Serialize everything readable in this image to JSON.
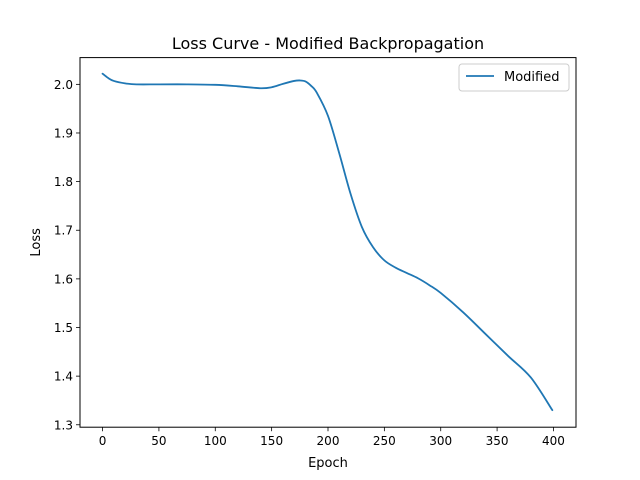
{
  "chart_data": {
    "type": "line",
    "title": "Loss Curve - Modified Backpropagation",
    "xlabel": "Epoch",
    "ylabel": "Loss",
    "xlim": [
      -20,
      420
    ],
    "ylim": [
      1.295,
      2.055
    ],
    "xticks": [
      0,
      50,
      100,
      150,
      200,
      250,
      300,
      350,
      400
    ],
    "yticks": [
      1.3,
      1.4,
      1.5,
      1.6,
      1.7,
      1.8,
      1.9,
      2.0
    ],
    "xtick_labels": [
      "0",
      "50",
      "100",
      "150",
      "200",
      "250",
      "300",
      "350",
      "400"
    ],
    "ytick_labels": [
      "1.3",
      "1.4",
      "1.5",
      "1.6",
      "1.7",
      "1.8",
      "1.9",
      "2.0"
    ],
    "grid": false,
    "legend_position": "top-right",
    "series": [
      {
        "name": "Modified",
        "color": "#1f77b4",
        "x": [
          0,
          5,
          10,
          20,
          30,
          50,
          75,
          100,
          120,
          140,
          150,
          160,
          170,
          175,
          180,
          185,
          190,
          200,
          210,
          220,
          230,
          240,
          250,
          260,
          270,
          280,
          290,
          300,
          320,
          340,
          360,
          380,
          399
        ],
        "y": [
          2.022,
          2.013,
          2.007,
          2.002,
          2.0,
          2.0,
          2.0,
          1.999,
          1.996,
          1.992,
          1.994,
          2.001,
          2.007,
          2.008,
          2.006,
          1.997,
          1.983,
          1.935,
          1.858,
          1.775,
          1.707,
          1.665,
          1.638,
          1.623,
          1.612,
          1.601,
          1.587,
          1.571,
          1.531,
          1.486,
          1.441,
          1.397,
          1.33
        ]
      }
    ]
  }
}
